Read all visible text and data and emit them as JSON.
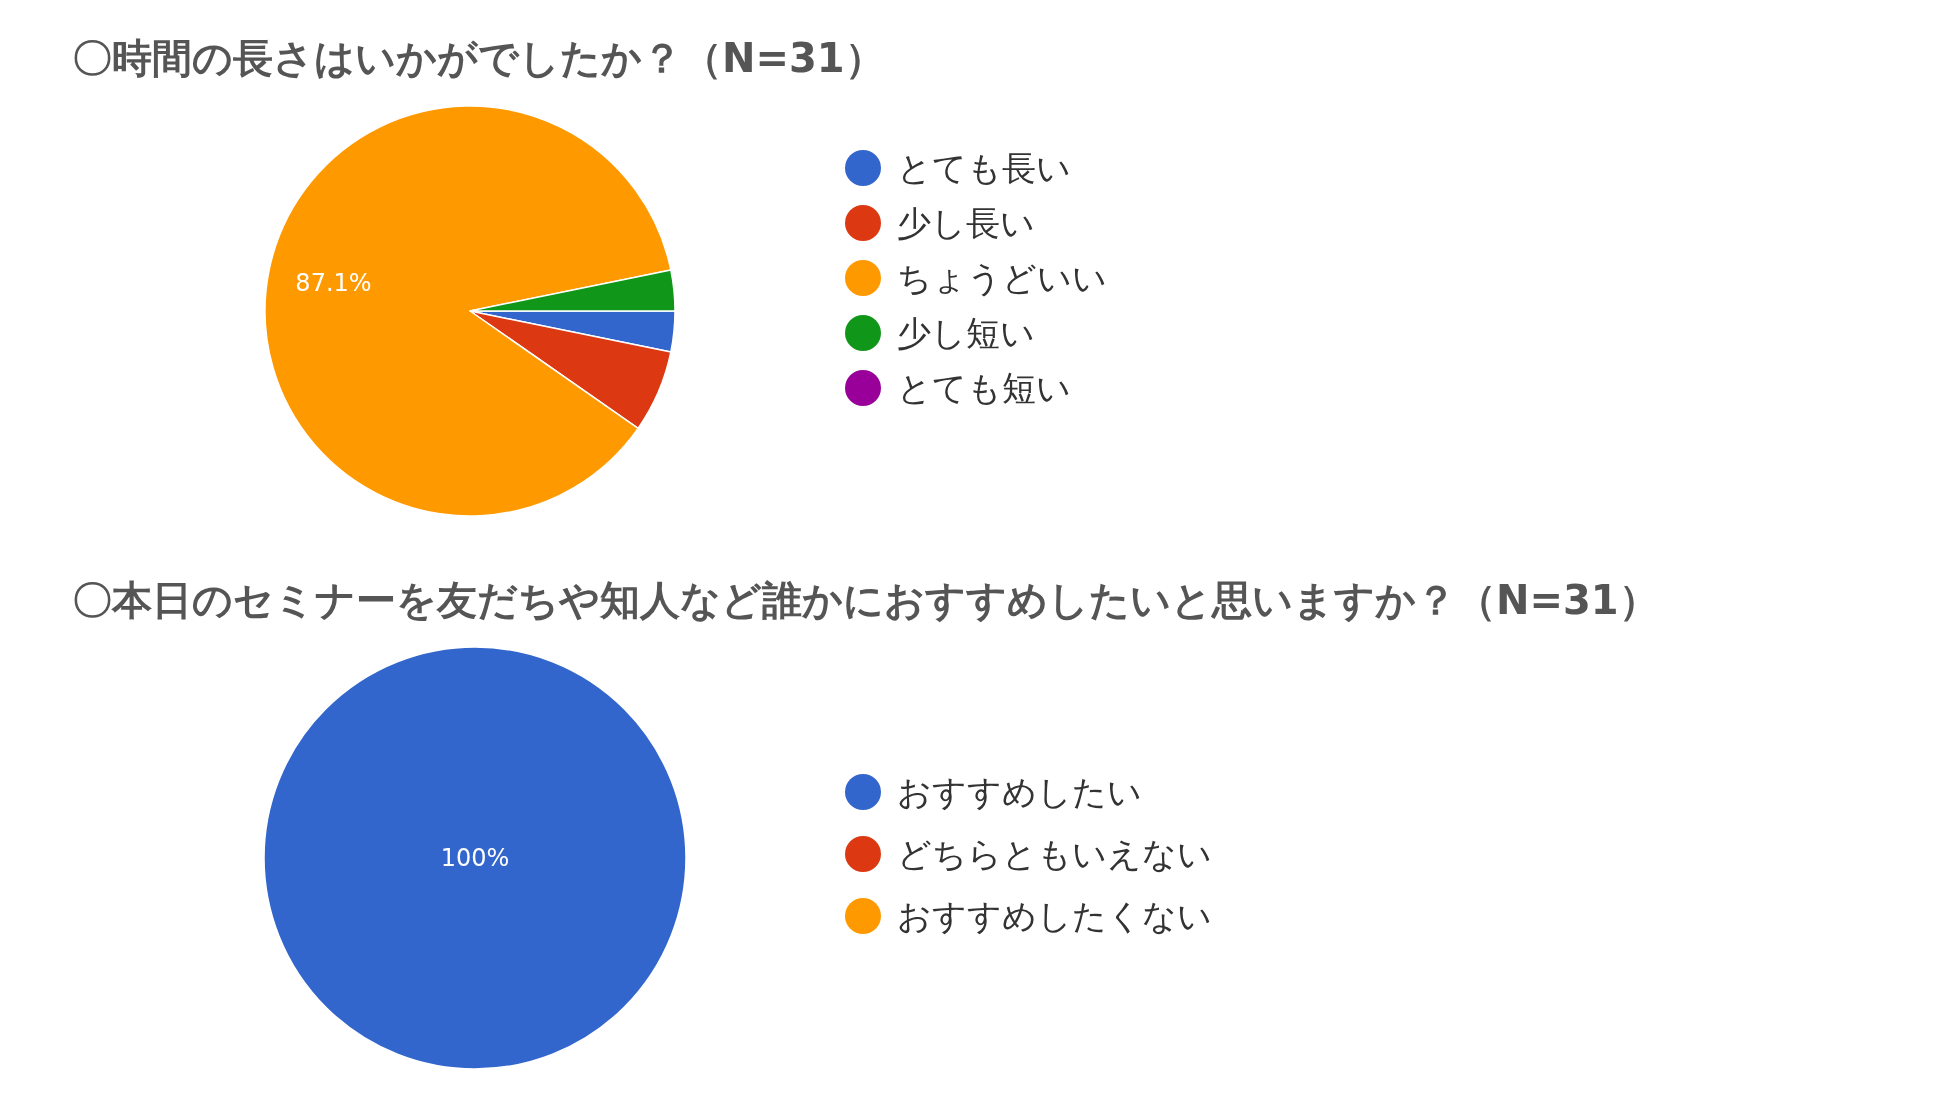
{
  "chart_data": [
    {
      "type": "pie",
      "title": "〇時間の長さはいかがでしたか？（N=31）",
      "categories": [
        "とても長い",
        "少し長い",
        "ちょうどいい",
        "少し短い",
        "とても短い"
      ],
      "values": [
        3.2,
        6.5,
        87.1,
        3.2,
        0
      ],
      "colors": [
        "#3366cc",
        "#dc3912",
        "#ff9900",
        "#109618",
        "#990099"
      ],
      "value_labels": [
        null,
        null,
        "87.1%",
        null,
        null
      ],
      "legend": "right"
    },
    {
      "type": "pie",
      "title": "〇本日のセミナーを友だちや知人など誰かにおすすめしたいと思いますか？（N=31）",
      "categories": [
        "おすすめしたい",
        "どちらともいえない",
        "おすすめしたくない"
      ],
      "values": [
        100,
        0,
        0
      ],
      "colors": [
        "#3366cc",
        "#dc3912",
        "#ff9900"
      ],
      "value_labels": [
        "100%",
        null,
        null
      ],
      "legend": "right"
    }
  ]
}
